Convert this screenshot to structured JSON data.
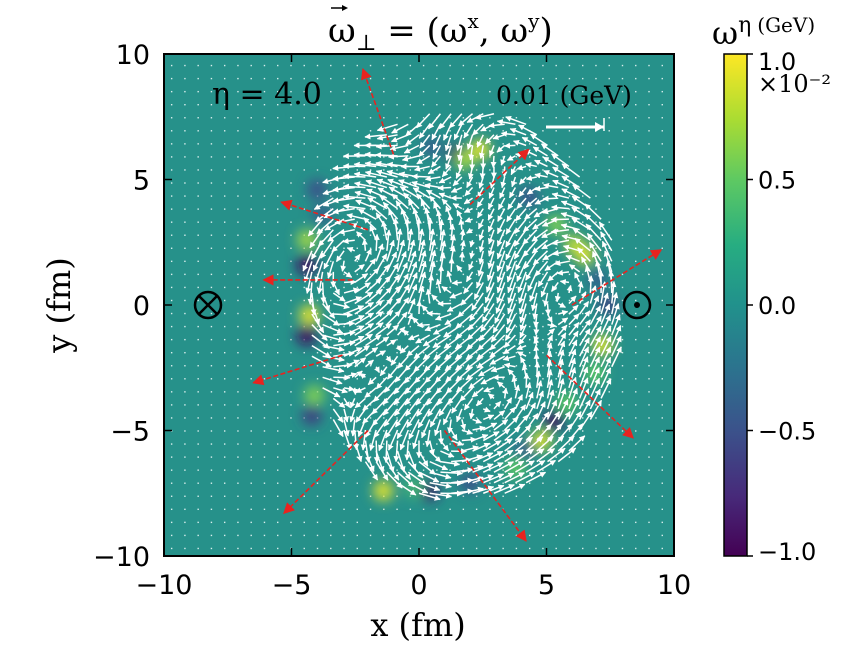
{
  "chart_data": {
    "type": "quiver",
    "title": "ω⃗⊥ = (ωˣ, ωʸ)",
    "title_parts": {
      "vec": "ω",
      "sub": "⊥",
      "rhs_a": " = (ω",
      "sup_x": "x",
      "mid": ", ω",
      "sup_y": "y",
      "end": ")"
    },
    "xlabel": "x (fm)",
    "ylabel": "y (fm)",
    "xlim": [
      -10,
      10
    ],
    "ylim": [
      -10,
      10
    ],
    "xticks": [
      -10,
      -5,
      0,
      5,
      10
    ],
    "yticks": [
      -10,
      -5,
      0,
      5,
      10
    ],
    "xtick_labels": [
      "−10",
      "−5",
      "0",
      "5",
      "10"
    ],
    "ytick_labels": [
      "−10",
      "−5",
      "0",
      "5",
      "10"
    ],
    "annotation_eta": "η = 4.0",
    "quiver_key": {
      "label": "0.01 (GeV)",
      "value": 0.01
    },
    "symbols": {
      "into_page": {
        "x": -8.4,
        "y": 0
      },
      "out_of_page": {
        "x": 8.6,
        "y": 0
      }
    },
    "background_color": "#26918a",
    "colorbar": {
      "label_base": "ω",
      "label_sup": "η",
      "label_unit": "(GeV)",
      "range": [
        -1.0,
        1.0
      ],
      "scale_text": "×10⁻²",
      "ticks": [
        1.0,
        0.5,
        0.0,
        -0.5,
        -1.0
      ],
      "tick_labels": [
        "1.0",
        "0.5",
        "0.0",
        "−0.5",
        "−1.0"
      ],
      "colors": [
        "#440154",
        "#3b528b",
        "#21918c",
        "#5ec962",
        "#fde725"
      ]
    },
    "red_arrows": [
      {
        "x0": -1.0,
        "y0": 6.0,
        "x1": -2.2,
        "y1": 9.4
      },
      {
        "x0": 2.0,
        "y0": 4.0,
        "x1": 4.3,
        "y1": 6.2
      },
      {
        "x0": -2.0,
        "y0": 3.0,
        "x1": -5.4,
        "y1": 4.1
      },
      {
        "x0": -2.6,
        "y0": 1.0,
        "x1": -6.1,
        "y1": 1.0
      },
      {
        "x0": 6.0,
        "y0": 0.0,
        "x1": 9.5,
        "y1": 2.2
      },
      {
        "x0": -3.0,
        "y0": -2.0,
        "x1": -6.5,
        "y1": -3.1
      },
      {
        "x0": 5.0,
        "y0": -2.0,
        "x1": 8.4,
        "y1": -5.3
      },
      {
        "x0": -2.0,
        "y0": -5.0,
        "x1": -5.3,
        "y1": -8.3
      },
      {
        "x0": 1.0,
        "y0": -5.0,
        "x1": 4.2,
        "y1": -9.4
      }
    ],
    "color_blobs": [
      {
        "x": 1.5,
        "y": 6.0,
        "v": -0.8
      },
      {
        "x": 0.5,
        "y": 6.3,
        "v": -0.4
      },
      {
        "x": 1.8,
        "y": 5.8,
        "v": 0.7
      },
      {
        "x": 2.4,
        "y": 6.2,
        "v": 0.9
      },
      {
        "x": 4.3,
        "y": 4.3,
        "v": -0.5
      },
      {
        "x": 5.4,
        "y": 3.2,
        "v": 0.6
      },
      {
        "x": 6.1,
        "y": 2.4,
        "v": 0.8
      },
      {
        "x": 6.5,
        "y": 2.0,
        "v": 0.9
      },
      {
        "x": 7.0,
        "y": 1.0,
        "v": -0.4
      },
      {
        "x": 7.4,
        "y": 0.0,
        "v": -0.6
      },
      {
        "x": 7.2,
        "y": -1.6,
        "v": 0.9
      },
      {
        "x": 6.9,
        "y": -2.7,
        "v": 0.5
      },
      {
        "x": 5.8,
        "y": -3.9,
        "v": 0.5
      },
      {
        "x": 5.3,
        "y": -4.6,
        "v": -0.9
      },
      {
        "x": 4.1,
        "y": -5.8,
        "v": -0.4
      },
      {
        "x": 4.8,
        "y": -5.4,
        "v": 0.9
      },
      {
        "x": 3.8,
        "y": -6.5,
        "v": 0.5
      },
      {
        "x": -1.4,
        "y": -7.4,
        "v": 0.9
      },
      {
        "x": 0.4,
        "y": -7.4,
        "v": -0.8
      },
      {
        "x": -0.2,
        "y": -7.3,
        "v": 0.3
      },
      {
        "x": 2.0,
        "y": -7.1,
        "v": -0.5
      },
      {
        "x": -4.2,
        "y": -4.4,
        "v": -0.6
      },
      {
        "x": -4.1,
        "y": -3.6,
        "v": 0.6
      },
      {
        "x": -4.4,
        "y": -1.2,
        "v": -0.9
      },
      {
        "x": -4.3,
        "y": -0.4,
        "v": 0.9
      },
      {
        "x": -4.4,
        "y": 1.6,
        "v": -0.9
      },
      {
        "x": -4.4,
        "y": 2.6,
        "v": 0.7
      },
      {
        "x": -3.8,
        "y": 3.6,
        "v": -0.4
      },
      {
        "x": -4.0,
        "y": 4.6,
        "v": -0.5
      }
    ]
  }
}
